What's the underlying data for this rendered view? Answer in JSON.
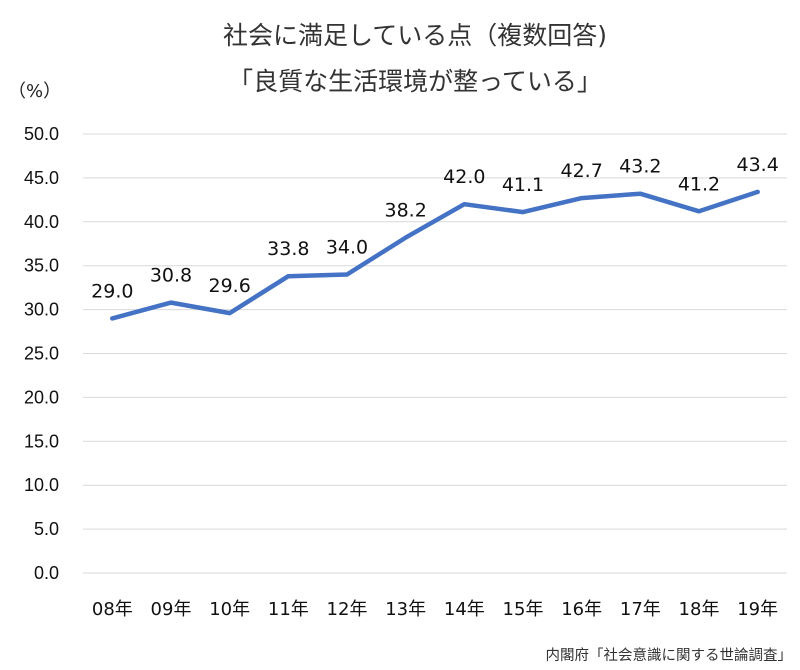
{
  "chart_data": {
    "type": "line",
    "title": "社会に満足している点（複数回答)",
    "subtitle": "「良質な生活環境が整っている」",
    "ylabel": "（%）",
    "xlabel": "",
    "source": "内閣府「社会意識に関する世論調査」",
    "categories": [
      "08年",
      "09年",
      "10年",
      "11年",
      "12年",
      "13年",
      "14年",
      "15年",
      "16年",
      "17年",
      "18年",
      "19年"
    ],
    "series": [
      {
        "values": [
          29.0,
          30.8,
          29.6,
          33.8,
          34.0,
          38.2,
          42.0,
          41.1,
          42.7,
          43.2,
          41.2,
          43.4
        ],
        "labels": [
          "29.0",
          "30.8",
          "29.6",
          "33.8",
          "34.0",
          "38.2",
          "42.0",
          "41.1",
          "42.7",
          "43.2",
          "41.2",
          "43.4"
        ],
        "color": "#4472c4"
      }
    ],
    "ylim": [
      0,
      50
    ],
    "yticks": [
      "0.0",
      "5.0",
      "10.0",
      "15.0",
      "20.0",
      "25.0",
      "30.0",
      "35.0",
      "40.0",
      "45.0",
      "50.0"
    ],
    "grid": true,
    "legend": "none"
  }
}
